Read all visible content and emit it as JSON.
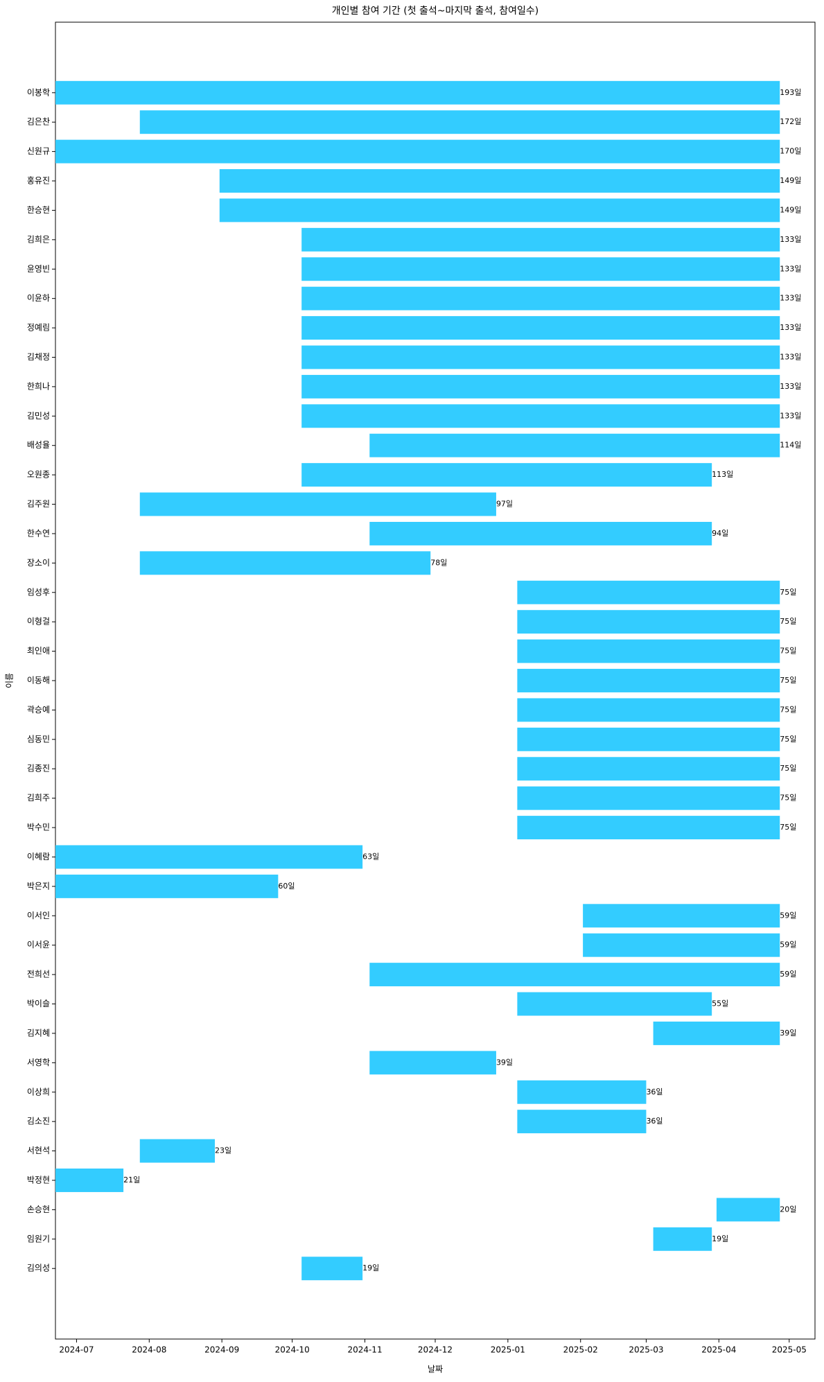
{
  "chart_data": {
    "type": "timeline",
    "title": "개인별 참여 기간 (첫 출석~마지막 출석, 참여일수)",
    "x_label": "날짜",
    "y_label": "이름",
    "color": "#33ccff",
    "categories": [
      "이봉학",
      "김은찬",
      "신원규",
      "홍유진",
      "한승현",
      "김희은",
      "윤영빈",
      "이윤하",
      "정예림",
      "김채정",
      "한희나",
      "김민성",
      "배성율",
      "오원종",
      "김주원",
      "한수연",
      "장소이",
      "임성후",
      "이형걸",
      "최인애",
      "이동해",
      "곽승예",
      "심동민",
      "김종진",
      "김희주",
      "박수민",
      "이혜람",
      "박은지",
      "이서인",
      "이서윤",
      "전희선",
      "박이슬",
      "김지혜",
      "서영학",
      "이상희",
      "김소진",
      "서현석",
      "박정현",
      "손승현",
      "임원기",
      "김의성"
    ],
    "start": [
      "2024-06-22",
      "2024-07-28",
      "2024-06-22",
      "2024-08-31",
      "2024-08-31",
      "2024-10-05",
      "2024-10-05",
      "2024-10-05",
      "2024-10-05",
      "2024-10-05",
      "2024-10-05",
      "2024-10-05",
      "2024-11-03",
      "2024-10-05",
      "2024-07-28",
      "2024-11-03",
      "2024-07-28",
      "2025-01-05",
      "2025-01-05",
      "2025-01-05",
      "2025-01-05",
      "2025-01-05",
      "2025-01-05",
      "2025-01-05",
      "2025-01-05",
      "2025-01-05",
      "2024-06-22",
      "2024-06-22",
      "2025-02-02",
      "2025-02-02",
      "2024-11-03",
      "2025-01-05",
      "2025-03-04",
      "2024-11-03",
      "2025-01-05",
      "2025-01-05",
      "2024-07-28",
      "2024-06-22",
      "2025-03-31",
      "2025-03-04",
      "2024-10-05"
    ],
    "end": [
      "2025-04-27",
      "2025-04-27",
      "2025-04-27",
      "2025-04-27",
      "2025-04-27",
      "2025-04-27",
      "2025-04-27",
      "2025-04-27",
      "2025-04-27",
      "2025-04-27",
      "2025-04-27",
      "2025-04-27",
      "2025-04-27",
      "2025-03-29",
      "2024-12-27",
      "2025-03-29",
      "2024-11-29",
      "2025-04-27",
      "2025-04-27",
      "2025-04-27",
      "2025-04-27",
      "2025-04-27",
      "2025-04-27",
      "2025-04-27",
      "2025-04-27",
      "2025-04-27",
      "2024-10-31",
      "2024-09-25",
      "2025-04-27",
      "2025-04-27",
      "2025-04-27",
      "2025-03-29",
      "2025-04-27",
      "2024-12-27",
      "2025-03-01",
      "2025-03-01",
      "2024-08-29",
      "2024-07-21",
      "2025-04-27",
      "2025-03-29",
      "2024-10-31"
    ],
    "values": [
      193,
      172,
      170,
      149,
      149,
      133,
      133,
      133,
      133,
      133,
      133,
      133,
      114,
      113,
      97,
      94,
      78,
      75,
      75,
      75,
      75,
      75,
      75,
      75,
      75,
      75,
      63,
      60,
      59,
      59,
      59,
      55,
      39,
      39,
      36,
      36,
      23,
      21,
      20,
      19,
      19
    ],
    "value_labels": [
      "193일",
      "172일",
      "170일",
      "149일",
      "149일",
      "133일",
      "133일",
      "133일",
      "133일",
      "133일",
      "133일",
      "133일",
      "114일",
      "113일",
      "97일",
      "94일",
      "78일",
      "75일",
      "75일",
      "75일",
      "75일",
      "75일",
      "75일",
      "75일",
      "75일",
      "75일",
      "63일",
      "60일",
      "59일",
      "59일",
      "59일",
      "55일",
      "39일",
      "39일",
      "36일",
      "36일",
      "23일",
      "21일",
      "20일",
      "19일",
      "19일"
    ],
    "xlim": [
      "2024-06-22",
      "2025-05-12"
    ],
    "xticks": [
      "2024-07",
      "2024-08",
      "2024-09",
      "2024-10",
      "2024-11",
      "2024-12",
      "2025-01",
      "2025-02",
      "2025-03",
      "2025-04",
      "2025-05"
    ]
  }
}
